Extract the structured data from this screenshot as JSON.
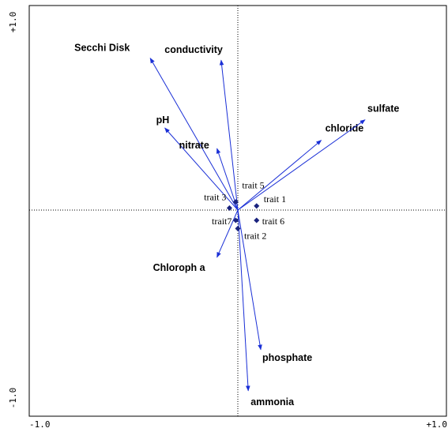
{
  "chart_data": {
    "type": "scatter",
    "subtype": "ordination-biplot",
    "title": "",
    "xlabel": "",
    "ylabel": "",
    "xlim": [
      -1.0,
      1.0
    ],
    "ylim": [
      -1.0,
      1.0
    ],
    "axis_tick_labels": {
      "x_min": "-1.0",
      "x_max": "+1.0",
      "y_min": "-1.0",
      "y_max": "+1.0"
    },
    "origin_lines": "dotted",
    "arrow_color": "#1a2fd6",
    "point_color": "#1a237e",
    "environmental_arrows": [
      {
        "name": "Secchi Disk",
        "x": -0.42,
        "y": 0.74
      },
      {
        "name": "conductivity",
        "x": -0.08,
        "y": 0.73
      },
      {
        "name": "pH",
        "x": -0.35,
        "y": 0.4
      },
      {
        "name": "nitrate",
        "x": -0.1,
        "y": 0.3
      },
      {
        "name": "chloride",
        "x": 0.4,
        "y": 0.34
      },
      {
        "name": "sulfate",
        "x": 0.61,
        "y": 0.44
      },
      {
        "name": "Chloroph a",
        "x": -0.1,
        "y": -0.23
      },
      {
        "name": "phosphate",
        "x": 0.11,
        "y": -0.68
      },
      {
        "name": "ammonia",
        "x": 0.05,
        "y": -0.88
      }
    ],
    "trait_points": [
      {
        "name": "trait 1",
        "x": 0.09,
        "y": 0.02
      },
      {
        "name": "trait 2",
        "x": 0.0,
        "y": -0.09
      },
      {
        "name": "trait 3",
        "x": -0.04,
        "y": 0.01
      },
      {
        "name": "trait 5",
        "x": -0.01,
        "y": 0.04
      },
      {
        "name": "trait 6",
        "x": 0.09,
        "y": -0.05
      },
      {
        "name": "trait7",
        "x": -0.01,
        "y": -0.05
      }
    ]
  }
}
